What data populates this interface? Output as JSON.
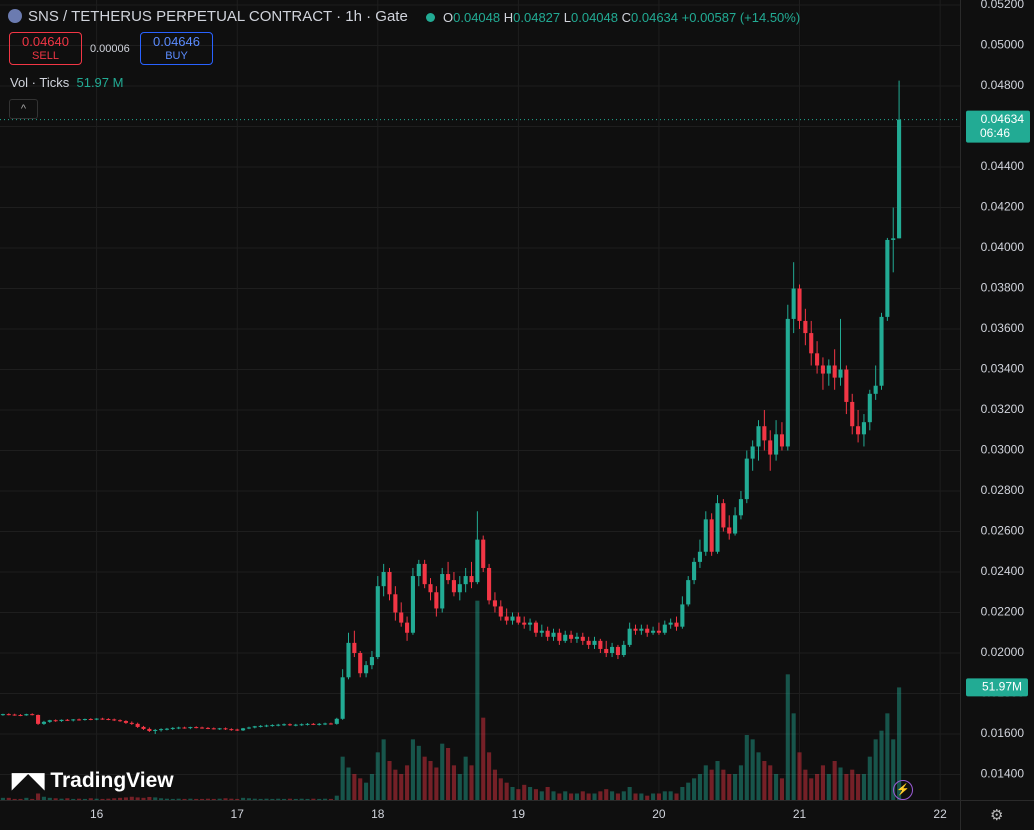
{
  "header": {
    "title": "SNS / TETHERUS PERPETUAL CONTRACT · 1h · Gate",
    "o": "O",
    "h": "H",
    "l": "L",
    "c": "C",
    "change": "+0.00587 (+14.50%)",
    "sell_price": "0.04640",
    "sell": "SELL",
    "spread": "0.00006",
    "buy_price": "0.04646",
    "buy": "BUY",
    "vol_name": "Vol · Ticks",
    "vol_value": "51.97 M",
    "vol_tag": "51.97M",
    "countdown": "06:46",
    "logo": "TradingView"
  },
  "chart_data": {
    "type": "candlestick",
    "up_color": "#22ab94",
    "down_color": "#f23645",
    "grid": true,
    "xlim": [
      7.5,
      171.4
    ],
    "xticks": [
      {
        "value": 24,
        "label": "16"
      },
      {
        "value": 48,
        "label": "17"
      },
      {
        "value": 72,
        "label": "18"
      },
      {
        "value": 96,
        "label": "19"
      },
      {
        "value": 120,
        "label": "20"
      },
      {
        "value": 144,
        "label": "21"
      },
      {
        "value": 168,
        "label": "22"
      }
    ],
    "ylim": [
      0.01274,
      0.05225
    ],
    "yticks": [
      {
        "value": 0.014,
        "label": "0.01400"
      },
      {
        "value": 0.016,
        "label": "0.01600"
      },
      {
        "value": 0.018,
        "label": "0.01800"
      },
      {
        "value": 0.02,
        "label": "0.02000"
      },
      {
        "value": 0.022,
        "label": "0.02200"
      },
      {
        "value": 0.024,
        "label": "0.02400"
      },
      {
        "value": 0.026,
        "label": "0.02600"
      },
      {
        "value": 0.028,
        "label": "0.02800"
      },
      {
        "value": 0.03,
        "label": "0.03000"
      },
      {
        "value": 0.032,
        "label": "0.03200"
      },
      {
        "value": 0.034,
        "label": "0.03400"
      },
      {
        "value": 0.036,
        "label": "0.03600"
      },
      {
        "value": 0.038,
        "label": "0.03800"
      },
      {
        "value": 0.04,
        "label": "0.04000"
      },
      {
        "value": 0.042,
        "label": "0.04200"
      },
      {
        "value": 0.044,
        "label": "0.04400"
      },
      {
        "value": 0.046,
        "label": "0.04600"
      },
      {
        "value": 0.048,
        "label": "0.04800"
      },
      {
        "value": 0.05,
        "label": "0.05000"
      },
      {
        "value": 0.052,
        "label": "0.05200"
      }
    ],
    "vlim": [
      0,
      120
    ],
    "x": [
      8,
      9,
      10,
      11,
      12,
      13,
      14,
      15,
      16,
      17,
      18,
      19,
      20,
      21,
      22,
      23,
      24,
      25,
      26,
      27,
      28,
      29,
      30,
      31,
      32,
      33,
      34,
      35,
      36,
      37,
      38,
      39,
      40,
      41,
      42,
      43,
      44,
      45,
      46,
      47,
      48,
      49,
      50,
      51,
      52,
      53,
      54,
      55,
      56,
      57,
      58,
      59,
      60,
      61,
      62,
      63,
      64,
      65,
      66,
      67,
      68,
      69,
      70,
      71,
      72,
      73,
      74,
      75,
      76,
      77,
      78,
      79,
      80,
      81,
      82,
      83,
      84,
      85,
      86,
      87,
      88,
      89,
      90,
      91,
      92,
      93,
      94,
      95,
      96,
      97,
      98,
      99,
      100,
      101,
      102,
      103,
      104,
      105,
      106,
      107,
      108,
      109,
      110,
      111,
      112,
      113,
      114,
      115,
      116,
      117,
      118,
      119,
      120,
      121,
      122,
      123,
      124,
      125,
      126,
      127,
      128,
      129,
      130,
      131,
      132,
      133,
      134,
      135,
      136,
      137,
      138,
      139,
      140,
      141,
      142,
      143,
      144,
      145,
      146,
      147,
      148,
      149,
      150,
      151,
      152,
      153,
      154,
      155,
      156,
      157,
      158,
      159,
      160,
      161
    ],
    "candles": [
      [
        0.01695,
        0.017,
        0.0169,
        0.01698
      ],
      [
        0.01698,
        0.01702,
        0.01692,
        0.01696
      ],
      [
        0.01696,
        0.017,
        0.0169,
        0.01694
      ],
      [
        0.01694,
        0.01698,
        0.01688,
        0.01692
      ],
      [
        0.01692,
        0.017,
        0.0169,
        0.01698
      ],
      [
        0.01698,
        0.01702,
        0.01692,
        0.01694
      ],
      [
        0.01694,
        0.01696,
        0.01645,
        0.0165
      ],
      [
        0.0165,
        0.01665,
        0.01645,
        0.0166
      ],
      [
        0.0166,
        0.0167,
        0.01655,
        0.01668
      ],
      [
        0.01668,
        0.01672,
        0.0166,
        0.01664
      ],
      [
        0.01664,
        0.01672,
        0.0166,
        0.0167
      ],
      [
        0.0167,
        0.01674,
        0.01664,
        0.01668
      ],
      [
        0.01668,
        0.01674,
        0.01662,
        0.01672
      ],
      [
        0.01672,
        0.01676,
        0.01666,
        0.0167
      ],
      [
        0.0167,
        0.01676,
        0.01666,
        0.01674
      ],
      [
        0.01674,
        0.01678,
        0.01668,
        0.01672
      ],
      [
        0.01672,
        0.01678,
        0.01668,
        0.01676
      ],
      [
        0.01676,
        0.0168,
        0.0167,
        0.01674
      ],
      [
        0.01674,
        0.01678,
        0.01668,
        0.01672
      ],
      [
        0.01672,
        0.01676,
        0.01664,
        0.01668
      ],
      [
        0.01668,
        0.01672,
        0.0166,
        0.01664
      ],
      [
        0.01664,
        0.01668,
        0.0165,
        0.01655
      ],
      [
        0.01655,
        0.01662,
        0.01645,
        0.0165
      ],
      [
        0.0165,
        0.01656,
        0.0163,
        0.01635
      ],
      [
        0.01635,
        0.0164,
        0.0162,
        0.01625
      ],
      [
        0.01625,
        0.01632,
        0.0161,
        0.01615
      ],
      [
        0.01615,
        0.01625,
        0.016,
        0.0162
      ],
      [
        0.0162,
        0.01628,
        0.01612,
        0.01624
      ],
      [
        0.01624,
        0.0163,
        0.01618,
        0.01626
      ],
      [
        0.01626,
        0.01634,
        0.0162,
        0.0163
      ],
      [
        0.0163,
        0.01636,
        0.01624,
        0.01632
      ],
      [
        0.01632,
        0.01636,
        0.01626,
        0.0163
      ],
      [
        0.0163,
        0.01636,
        0.01624,
        0.01634
      ],
      [
        0.01634,
        0.01638,
        0.01628,
        0.01632
      ],
      [
        0.01632,
        0.01636,
        0.01626,
        0.0163
      ],
      [
        0.0163,
        0.01634,
        0.01624,
        0.01628
      ],
      [
        0.01628,
        0.01632,
        0.01622,
        0.01626
      ],
      [
        0.01626,
        0.0163,
        0.0162,
        0.01628
      ],
      [
        0.01628,
        0.01632,
        0.0162,
        0.01624
      ],
      [
        0.01624,
        0.01628,
        0.01616,
        0.01622
      ],
      [
        0.01622,
        0.01626,
        0.01615,
        0.01618
      ],
      [
        0.01618,
        0.0163,
        0.01615,
        0.01628
      ],
      [
        0.01628,
        0.01636,
        0.01624,
        0.01632
      ],
      [
        0.01632,
        0.0164,
        0.01628,
        0.01638
      ],
      [
        0.01638,
        0.01644,
        0.01632,
        0.0164
      ],
      [
        0.0164,
        0.01646,
        0.01634,
        0.01642
      ],
      [
        0.01642,
        0.01648,
        0.01636,
        0.01644
      ],
      [
        0.01644,
        0.0165,
        0.01638,
        0.01646
      ],
      [
        0.01646,
        0.01652,
        0.0164,
        0.01648
      ],
      [
        0.01648,
        0.01652,
        0.0164,
        0.01644
      ],
      [
        0.01644,
        0.0165,
        0.01638,
        0.01646
      ],
      [
        0.01646,
        0.01652,
        0.0164,
        0.01648
      ],
      [
        0.01648,
        0.01654,
        0.01642,
        0.0165
      ],
      [
        0.0165,
        0.01654,
        0.01644,
        0.01648
      ],
      [
        0.01648,
        0.01654,
        0.01642,
        0.0165
      ],
      [
        0.0165,
        0.01656,
        0.01644,
        0.01652
      ],
      [
        0.01652,
        0.01656,
        0.01646,
        0.0165
      ],
      [
        0.0165,
        0.0168,
        0.01646,
        0.01675
      ],
      [
        0.01675,
        0.0192,
        0.0167,
        0.0188
      ],
      [
        0.0188,
        0.021,
        0.0187,
        0.0205
      ],
      [
        0.0205,
        0.0211,
        0.0198,
        0.02
      ],
      [
        0.02,
        0.0201,
        0.0188,
        0.019
      ],
      [
        0.019,
        0.0196,
        0.0188,
        0.0194
      ],
      [
        0.0194,
        0.0201,
        0.0192,
        0.0198
      ],
      [
        0.0198,
        0.0238,
        0.0197,
        0.0233
      ],
      [
        0.0233,
        0.0244,
        0.0228,
        0.024
      ],
      [
        0.024,
        0.0242,
        0.0226,
        0.0229
      ],
      [
        0.0229,
        0.0233,
        0.0216,
        0.022
      ],
      [
        0.022,
        0.0225,
        0.0213,
        0.0215
      ],
      [
        0.0215,
        0.0218,
        0.0206,
        0.021
      ],
      [
        0.021,
        0.0242,
        0.0209,
        0.0238
      ],
      [
        0.0238,
        0.0246,
        0.0233,
        0.0244
      ],
      [
        0.0244,
        0.0246,
        0.0232,
        0.0234
      ],
      [
        0.0234,
        0.0237,
        0.0226,
        0.023
      ],
      [
        0.023,
        0.0233,
        0.0218,
        0.0222
      ],
      [
        0.0222,
        0.0242,
        0.022,
        0.0239
      ],
      [
        0.0239,
        0.0245,
        0.0234,
        0.0236
      ],
      [
        0.0236,
        0.024,
        0.0228,
        0.023
      ],
      [
        0.023,
        0.0238,
        0.0226,
        0.0234
      ],
      [
        0.0234,
        0.0242,
        0.023,
        0.0238
      ],
      [
        0.0238,
        0.0245,
        0.0232,
        0.0235
      ],
      [
        0.0235,
        0.027,
        0.0234,
        0.0256
      ],
      [
        0.0256,
        0.0258,
        0.024,
        0.0242
      ],
      [
        0.0242,
        0.0244,
        0.0224,
        0.0226
      ],
      [
        0.0226,
        0.023,
        0.022,
        0.0223
      ],
      [
        0.0223,
        0.0226,
        0.0216,
        0.0218
      ],
      [
        0.0218,
        0.0222,
        0.0214,
        0.0216
      ],
      [
        0.0216,
        0.022,
        0.0214,
        0.0218
      ],
      [
        0.0218,
        0.022,
        0.0214,
        0.0215
      ],
      [
        0.0215,
        0.0218,
        0.0212,
        0.0214
      ],
      [
        0.0214,
        0.0217,
        0.0211,
        0.0215
      ],
      [
        0.0215,
        0.0216,
        0.0208,
        0.021
      ],
      [
        0.021,
        0.0214,
        0.0208,
        0.0211
      ],
      [
        0.0211,
        0.0213,
        0.0206,
        0.0208
      ],
      [
        0.0208,
        0.0212,
        0.0206,
        0.021
      ],
      [
        0.021,
        0.0212,
        0.0204,
        0.0206
      ],
      [
        0.0206,
        0.0211,
        0.0205,
        0.0209
      ],
      [
        0.0209,
        0.0211,
        0.0205,
        0.0207
      ],
      [
        0.0207,
        0.021,
        0.0205,
        0.0208
      ],
      [
        0.0208,
        0.021,
        0.0204,
        0.0206
      ],
      [
        0.0206,
        0.0208,
        0.0202,
        0.0204
      ],
      [
        0.0204,
        0.0208,
        0.0202,
        0.0206
      ],
      [
        0.0206,
        0.0207,
        0.02,
        0.0202
      ],
      [
        0.0202,
        0.0206,
        0.0198,
        0.02
      ],
      [
        0.02,
        0.0205,
        0.0198,
        0.0203
      ],
      [
        0.0203,
        0.0204,
        0.0197,
        0.0199
      ],
      [
        0.0199,
        0.0206,
        0.0198,
        0.0204
      ],
      [
        0.0204,
        0.0215,
        0.0203,
        0.0212
      ],
      [
        0.0212,
        0.0214,
        0.0209,
        0.0211
      ],
      [
        0.0211,
        0.0214,
        0.0209,
        0.0212
      ],
      [
        0.0212,
        0.0214,
        0.0208,
        0.021
      ],
      [
        0.021,
        0.0213,
        0.0209,
        0.0211
      ],
      [
        0.0211,
        0.0215,
        0.0209,
        0.021
      ],
      [
        0.021,
        0.0216,
        0.0209,
        0.0214
      ],
      [
        0.0214,
        0.0217,
        0.0212,
        0.0215
      ],
      [
        0.0215,
        0.0218,
        0.0211,
        0.0213
      ],
      [
        0.0213,
        0.0228,
        0.0212,
        0.0224
      ],
      [
        0.0224,
        0.0238,
        0.0223,
        0.0236
      ],
      [
        0.0236,
        0.0247,
        0.0234,
        0.0245
      ],
      [
        0.0245,
        0.0256,
        0.0242,
        0.025
      ],
      [
        0.025,
        0.027,
        0.0248,
        0.0266
      ],
      [
        0.0266,
        0.0269,
        0.0248,
        0.025
      ],
      [
        0.025,
        0.0278,
        0.0249,
        0.0274
      ],
      [
        0.0274,
        0.0276,
        0.026,
        0.0262
      ],
      [
        0.0262,
        0.0268,
        0.0256,
        0.0259
      ],
      [
        0.0259,
        0.0272,
        0.0258,
        0.0268
      ],
      [
        0.0268,
        0.028,
        0.0266,
        0.0276
      ],
      [
        0.0276,
        0.03,
        0.0274,
        0.0296
      ],
      [
        0.0296,
        0.0305,
        0.029,
        0.0302
      ],
      [
        0.0302,
        0.0315,
        0.0295,
        0.0312
      ],
      [
        0.0312,
        0.032,
        0.03,
        0.0305
      ],
      [
        0.0305,
        0.031,
        0.029,
        0.0298
      ],
      [
        0.0298,
        0.0315,
        0.0295,
        0.0308
      ],
      [
        0.0308,
        0.0314,
        0.03,
        0.0302
      ],
      [
        0.0302,
        0.0372,
        0.03,
        0.0365
      ],
      [
        0.0365,
        0.0393,
        0.0358,
        0.038
      ],
      [
        0.038,
        0.0382,
        0.036,
        0.0364
      ],
      [
        0.0364,
        0.037,
        0.0352,
        0.0358
      ],
      [
        0.0358,
        0.0364,
        0.0342,
        0.0348
      ],
      [
        0.0348,
        0.0354,
        0.0338,
        0.0342
      ],
      [
        0.0342,
        0.0346,
        0.033,
        0.0338
      ],
      [
        0.0338,
        0.0345,
        0.0332,
        0.0342
      ],
      [
        0.0342,
        0.035,
        0.033,
        0.0336
      ],
      [
        0.0336,
        0.0365,
        0.0332,
        0.034
      ],
      [
        0.034,
        0.0342,
        0.0318,
        0.0324
      ],
      [
        0.0324,
        0.0328,
        0.0308,
        0.0312
      ],
      [
        0.0312,
        0.032,
        0.0304,
        0.0308
      ],
      [
        0.0308,
        0.0318,
        0.0302,
        0.0314
      ],
      [
        0.0314,
        0.033,
        0.031,
        0.0328
      ],
      [
        0.0328,
        0.0342,
        0.0325,
        0.0332
      ],
      [
        0.0332,
        0.0368,
        0.033,
        0.0366
      ],
      [
        0.0366,
        0.0405,
        0.0364,
        0.0404
      ],
      [
        0.0404,
        0.042,
        0.0388,
        0.04048
      ],
      [
        0.04048,
        0.04827,
        0.04048,
        0.04634
      ]
    ],
    "volume": [
      1,
      1,
      0.5,
      0.5,
      1,
      0.5,
      3,
      1.5,
      1,
      0.8,
      0.6,
      0.8,
      0.5,
      0.6,
      0.5,
      0.8,
      0.6,
      0.5,
      0.6,
      0.8,
      1,
      1.2,
      1.5,
      1.2,
      1,
      1.4,
      1.2,
      0.8,
      0.6,
      0.5,
      0.6,
      0.5,
      0.6,
      0.5,
      0.5,
      0.6,
      0.5,
      0.6,
      0.8,
      0.6,
      0.5,
      1,
      0.8,
      0.6,
      0.5,
      0.6,
      0.5,
      0.6,
      0.5,
      0.6,
      0.5,
      0.6,
      0.5,
      0.6,
      0.5,
      0.6,
      0.5,
      2,
      20,
      15,
      12,
      10,
      8,
      12,
      22,
      28,
      18,
      14,
      12,
      16,
      28,
      25,
      20,
      18,
      15,
      26,
      24,
      16,
      12,
      20,
      16,
      92,
      38,
      22,
      14,
      10,
      8,
      6,
      5,
      7,
      6,
      5,
      4,
      6,
      4,
      3,
      4,
      3,
      3,
      4,
      3,
      3,
      4,
      5,
      4,
      3,
      4,
      6,
      3,
      3,
      2,
      3,
      3,
      4,
      4,
      3,
      6,
      8,
      10,
      12,
      16,
      14,
      18,
      14,
      12,
      12,
      16,
      30,
      28,
      22,
      18,
      16,
      12,
      10,
      58,
      40,
      22,
      14,
      10,
      12,
      16,
      12,
      18,
      15,
      12,
      14,
      12,
      12,
      20,
      28,
      32,
      40,
      28,
      51.97
    ]
  }
}
